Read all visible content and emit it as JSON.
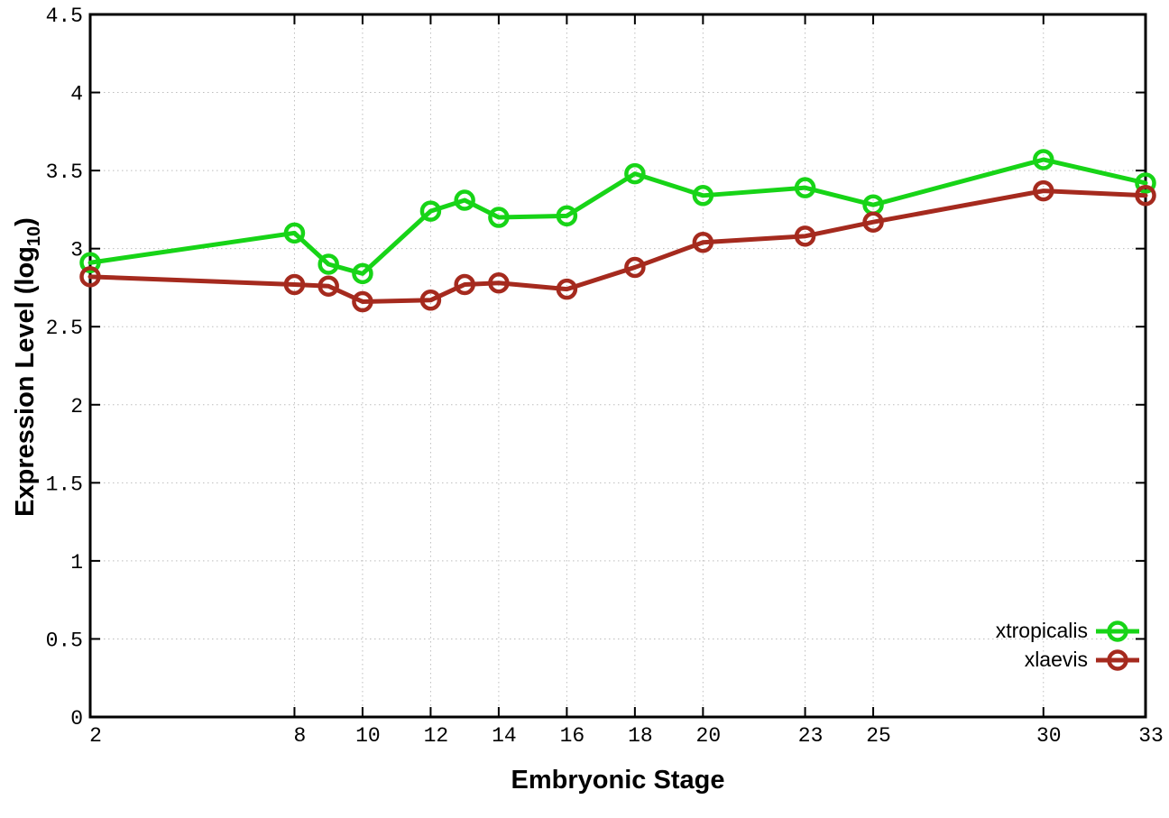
{
  "chart_data": {
    "type": "line",
    "title": "",
    "xlabel": "Embryonic Stage",
    "ylabel": "Expression Level (log10)",
    "ylabel_prefix": "Expression Level (log",
    "ylabel_sub": "10",
    "ylabel_suffix": ")",
    "x": [
      2,
      8,
      9,
      10,
      12,
      13,
      14,
      16,
      18,
      20,
      23,
      25,
      30,
      33
    ],
    "xticks": [
      2,
      8,
      10,
      12,
      14,
      16,
      18,
      20,
      23,
      25,
      30,
      33
    ],
    "yticks": [
      "0",
      "0.5",
      "1",
      "1.5",
      "2",
      "2.5",
      "3",
      "3.5",
      "4",
      "4.5"
    ],
    "xlim": [
      2,
      33
    ],
    "ylim": [
      0,
      4.5
    ],
    "grid": true,
    "legend_position": "bottom-right",
    "marker": "open-circle",
    "series": [
      {
        "name": "xtropicalis",
        "color": "#17d417",
        "values": [
          2.91,
          3.1,
          2.9,
          2.84,
          3.24,
          3.31,
          3.2,
          3.21,
          3.48,
          3.34,
          3.39,
          3.28,
          3.57,
          3.42
        ]
      },
      {
        "name": "xlaevis",
        "color": "#a52a1e",
        "values": [
          2.82,
          2.77,
          2.76,
          2.66,
          2.67,
          2.77,
          2.78,
          2.74,
          2.88,
          3.04,
          3.08,
          3.17,
          3.37,
          3.34
        ]
      }
    ]
  },
  "colors": {
    "background": "#ffffff",
    "axis_border": "#000000",
    "tick_label": "#000000",
    "grid": "#bdbdbd"
  }
}
